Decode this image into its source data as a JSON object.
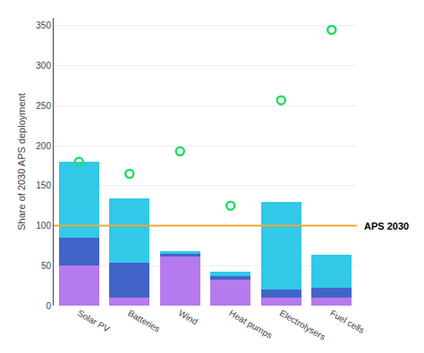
{
  "chart_data": {
    "type": "bar",
    "stacked": true,
    "categories": [
      "Solar PV",
      "Batteries",
      "Wind",
      "Heat pumps",
      "Electrolysers",
      "Fuel cells"
    ],
    "series": [
      {
        "color": "#b57bee",
        "values": [
          50,
          10,
          62,
          32,
          10,
          10
        ]
      },
      {
        "color": "#4264c8",
        "values": [
          35,
          44,
          3,
          5,
          10,
          12
        ]
      },
      {
        "color": "#32c8e8",
        "values": [
          95,
          80,
          3,
          5,
          110,
          42
        ]
      },
      {
        "type": "scatter",
        "marker": "circle-open",
        "color": "#22dd66",
        "values": [
          180,
          165,
          193,
          125,
          257,
          345
        ]
      }
    ],
    "reference_lines": [
      {
        "y": 100,
        "label": "APS 2030",
        "color": "#f0a832"
      }
    ],
    "ylabel": "Share of 2030 APS deployment",
    "ylim": [
      0,
      360
    ],
    "yticks": [
      0,
      50,
      100,
      150,
      200,
      250,
      300,
      350
    ],
    "grid": true
  }
}
